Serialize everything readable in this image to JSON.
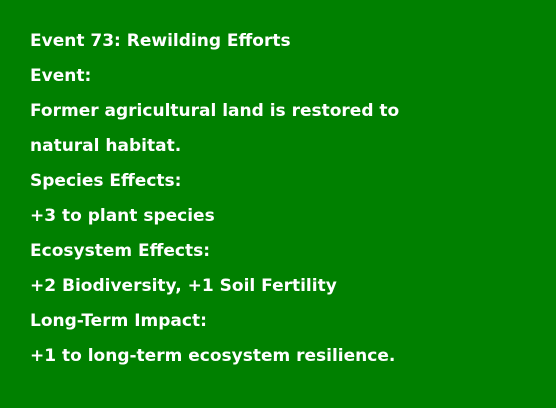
{
  "event": {
    "title": "Event 73: Rewilding Efforts",
    "event_heading": "Event:",
    "description_line1": "Former agricultural land is restored to",
    "description_line2": "natural habitat.",
    "species_heading": "Species Effects:",
    "species_text": "+3 to plant species",
    "ecosystem_heading": "Ecosystem Effects:",
    "ecosystem_text": "+2 Biodiversity, +1 Soil Fertility",
    "longterm_heading": "Long-Term Impact:",
    "longterm_text": "+1 to long-term ecosystem resilience."
  },
  "colors": {
    "background": "#008000",
    "text": "#ffffff"
  }
}
